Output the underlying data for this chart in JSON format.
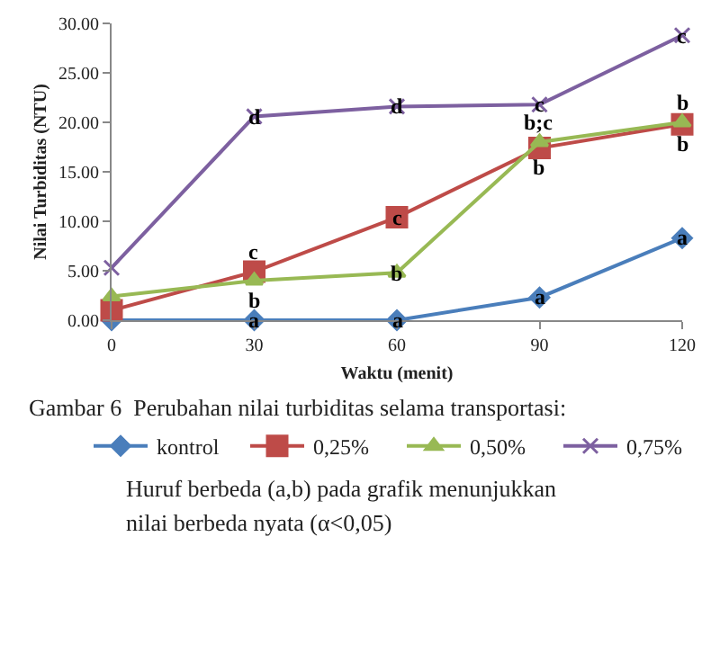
{
  "chart_data": {
    "type": "line",
    "xlabel": "Waktu (menit)",
    "ylabel": "Nilai Turbiditas (NTU)",
    "x": [
      0,
      30,
      60,
      90,
      120
    ],
    "series": [
      {
        "name": "kontrol",
        "color": "#4a7ebb",
        "marker": "diamond",
        "values": [
          0.0,
          0.0,
          0.0,
          2.3,
          8.3
        ]
      },
      {
        "name": "0,25%",
        "color": "#be4b48",
        "marker": "square",
        "values": [
          1.0,
          4.9,
          10.4,
          17.4,
          19.8
        ]
      },
      {
        "name": "0,50%",
        "color": "#98b954",
        "marker": "triangle",
        "values": [
          2.4,
          4.0,
          4.8,
          18.0,
          20.0
        ]
      },
      {
        "name": "0,75%",
        "color": "#7d60a0",
        "marker": "cross",
        "values": [
          5.3,
          20.6,
          21.6,
          21.8,
          28.8
        ]
      }
    ],
    "xlim": [
      0,
      120
    ],
    "xticks": [
      0,
      30,
      60,
      90,
      120
    ],
    "ylim": [
      0,
      30
    ],
    "yticks": [
      {
        "value": 0,
        "label": "0.00"
      },
      {
        "value": 5,
        "label": "5.00"
      },
      {
        "value": 10,
        "label": "10.00"
      },
      {
        "value": 15,
        "label": "15.00"
      },
      {
        "value": 20,
        "label": "20.00"
      },
      {
        "value": 25,
        "label": "25.00"
      },
      {
        "value": 30,
        "label": "30.00"
      }
    ],
    "legend": "bottom",
    "annotations": [
      {
        "text": "a",
        "x": 30,
        "y": 0
      },
      {
        "text": "a",
        "x": 60,
        "y": 0
      },
      {
        "text": "a",
        "x": 90,
        "y": 2.3
      },
      {
        "text": "a",
        "x": 120,
        "y": 8.3
      },
      {
        "text": "c",
        "x": 30,
        "y": 4.9
      },
      {
        "text": "c",
        "x": 60,
        "y": 10.4
      },
      {
        "text": "b",
        "x": 90,
        "y": 17.4
      },
      {
        "text": "b",
        "x": 120,
        "y": 19.8
      },
      {
        "text": "b",
        "x": 30,
        "y": 4.0
      },
      {
        "text": "b",
        "x": 60,
        "y": 4.8
      },
      {
        "text": "b;c",
        "x": 90,
        "y": 18.0
      },
      {
        "text": "b",
        "x": 120,
        "y": 20.0
      },
      {
        "text": "d",
        "x": 30,
        "y": 20.6
      },
      {
        "text": "d",
        "x": 60,
        "y": 21.6
      },
      {
        "text": "c",
        "x": 90,
        "y": 21.8
      },
      {
        "text": "c",
        "x": 120,
        "y": 28.8
      },
      "Gambar 6  Perubahan nilai turbiditas selama transportasi:",
      "Huruf berbeda (a,b) pada grafik menunjukkan",
      "nilai berbeda nyata (α<0,05)"
    ]
  }
}
